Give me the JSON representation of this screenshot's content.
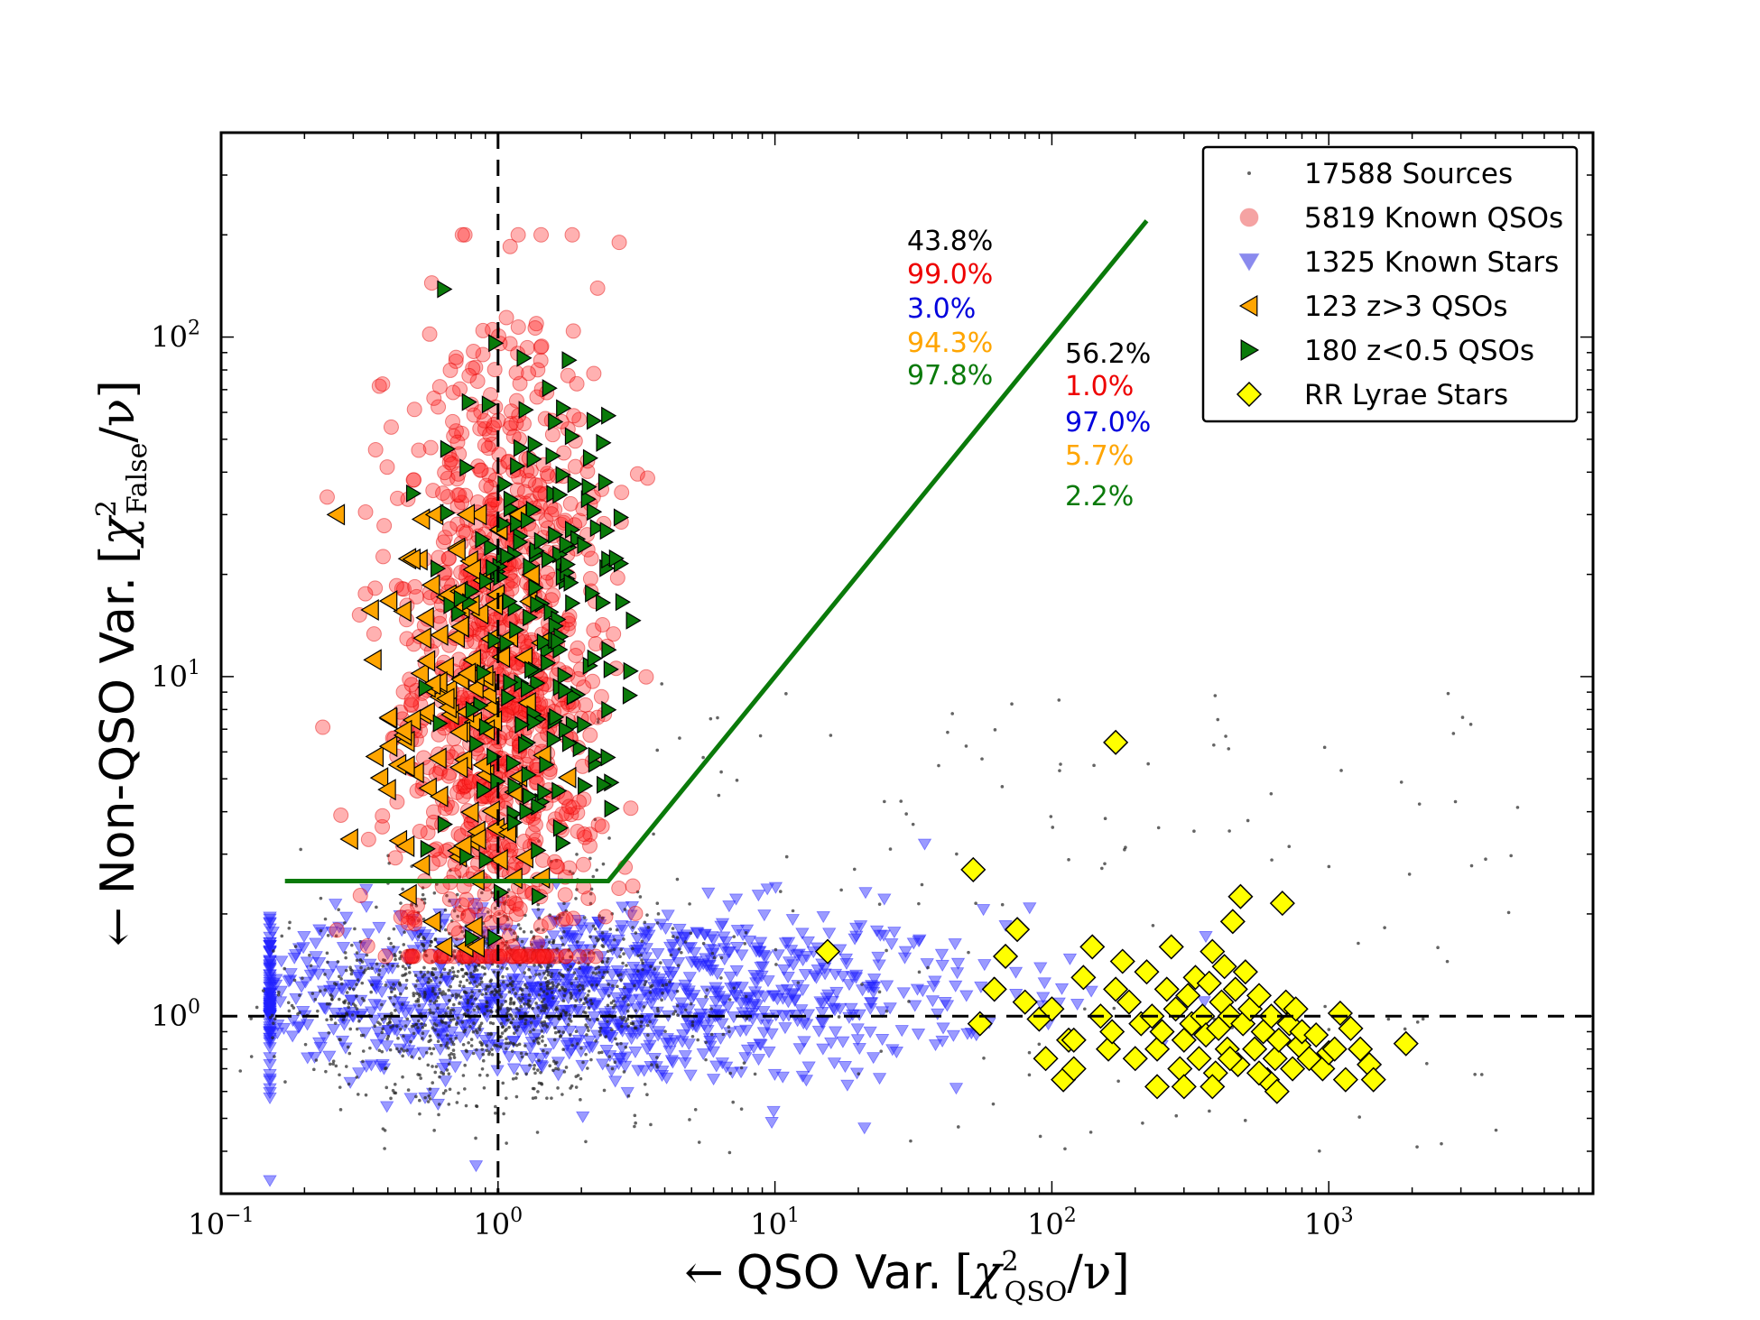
{
  "chart_data": {
    "type": "scatter",
    "title": "",
    "xlabel": {
      "arrow": "←",
      "text": "QSO Var.",
      "symbol": "χ",
      "sup": "2",
      "sub": "QSO",
      "tail": "/ν"
    },
    "ylabel": {
      "arrow": "←",
      "text": "Non-QSO Var.",
      "symbol": "χ",
      "sup": "2",
      "sub": "False",
      "tail": "/ν"
    },
    "xscale": "log",
    "yscale": "log",
    "xlim": [
      0.1,
      9000
    ],
    "ylim": [
      0.3,
      400
    ],
    "x_ticks": [
      {
        "value": 0.1,
        "base": "10",
        "exp": "−1"
      },
      {
        "value": 1,
        "base": "10",
        "exp": "0"
      },
      {
        "value": 10,
        "base": "10",
        "exp": "1"
      },
      {
        "value": 100,
        "base": "10",
        "exp": "2"
      },
      {
        "value": 1000,
        "base": "10",
        "exp": "3"
      }
    ],
    "y_ticks": [
      {
        "value": 1,
        "base": "10",
        "exp": "0"
      },
      {
        "value": 10,
        "base": "10",
        "exp": "1"
      },
      {
        "value": 100,
        "base": "10",
        "exp": "2"
      }
    ],
    "reference_lines": [
      {
        "orientation": "vertical",
        "value": 1,
        "style": "dashed"
      },
      {
        "orientation": "horizontal",
        "value": 1,
        "style": "dashed"
      }
    ],
    "selection_boundary": {
      "color": "#0a7a0a",
      "points": [
        [
          0.17,
          2.5
        ],
        [
          2.5,
          2.5
        ],
        [
          220,
          220
        ]
      ]
    },
    "legend": {
      "placement": "top-right",
      "entries": [
        {
          "label": "17588 Sources",
          "marker": "dot",
          "color": "#444444"
        },
        {
          "label": "5819 Known QSOs",
          "marker": "circle",
          "color": "#f28c8c"
        },
        {
          "label": "1325 Known Stars",
          "marker": "triangle-down",
          "color": "#8a8aee"
        },
        {
          "label": "123 z>3 QSOs",
          "marker": "triangle-left",
          "color": "#ffa500"
        },
        {
          "label": "180 z<0.5 QSOs",
          "marker": "triangle-right",
          "color": "#0a7a0a"
        },
        {
          "label": "RR Lyrae Stars",
          "marker": "diamond",
          "color": "#ffff00"
        }
      ]
    },
    "annotations": [
      {
        "region": "selected",
        "values": [
          {
            "text": "43.8%",
            "color": "#000000"
          },
          {
            "text": "99.0%",
            "color": "#ee0000"
          },
          {
            "text": "3.0%",
            "color": "#0000dd"
          },
          {
            "text": "94.3%",
            "color": "#ffa500"
          },
          {
            "text": "97.8%",
            "color": "#0a7a0a"
          }
        ]
      },
      {
        "region": "rejected",
        "values": [
          {
            "text": "56.2%",
            "color": "#000000"
          },
          {
            "text": "1.0%",
            "color": "#ee0000"
          },
          {
            "text": "97.0%",
            "color": "#0000dd"
          },
          {
            "text": "5.7%",
            "color": "#ffa500"
          },
          {
            "text": "2.2%",
            "color": "#0a7a0a"
          }
        ]
      }
    ],
    "series": [
      {
        "name": "17588 Sources",
        "marker": "dot",
        "color": "#222222",
        "count": 1400,
        "distribution": {
          "x_center": 1.0,
          "x_sigma_dex": 0.35,
          "y_center": 1.15,
          "y_sigma_dex": 0.15,
          "tail": "wide scatter to x~5000"
        }
      },
      {
        "name": "5819 Known QSOs",
        "marker": "circle",
        "color": "#ff0000",
        "count": 1000,
        "distribution": {
          "x_center": 1.0,
          "x_sigma_dex": 0.18,
          "y_center": 10,
          "y_sigma_dex": 0.5,
          "y_range": [
            1.5,
            200
          ]
        }
      },
      {
        "name": "1325 Known Stars",
        "marker": "triangle-down",
        "color": "#0000ff",
        "count": 1100,
        "distribution": {
          "x_center": 2.0,
          "x_sigma_dex": 0.75,
          "y_center": 1.15,
          "y_sigma_dex": 0.13,
          "x_range": [
            0.15,
            5000
          ]
        }
      },
      {
        "name": "123 z>3 QSOs",
        "marker": "triangle-left",
        "color": "#ffa500",
        "count": 123,
        "distribution": {
          "x_center": 0.7,
          "x_sigma_dex": 0.15,
          "y_center": 8,
          "y_sigma_dex": 0.35,
          "y_range": [
            1.6,
            30
          ]
        }
      },
      {
        "name": "180 z<0.5 QSOs",
        "marker": "triangle-right",
        "color": "#008000",
        "count": 180,
        "distribution": {
          "x_center": 1.4,
          "x_sigma_dex": 0.18,
          "y_center": 15,
          "y_sigma_dex": 0.4,
          "y_range": [
            1.7,
            300
          ]
        }
      },
      {
        "name": "RR Lyrae Stars",
        "marker": "diamond",
        "color": "#ffff00",
        "points": [
          [
            15.5,
            1.55
          ],
          [
            52,
            2.7
          ],
          [
            170,
            6.4
          ],
          [
            55,
            0.95
          ],
          [
            62,
            1.2
          ],
          [
            68,
            1.5
          ],
          [
            75,
            1.8
          ],
          [
            80,
            1.1
          ],
          [
            90,
            0.98
          ],
          [
            95,
            0.75
          ],
          [
            100,
            1.05
          ],
          [
            110,
            0.65
          ],
          [
            115,
            0.85
          ],
          [
            120,
            0.7
          ],
          [
            130,
            1.3
          ],
          [
            140,
            1.6
          ],
          [
            150,
            1.0
          ],
          [
            160,
            0.8
          ],
          [
            165,
            0.9
          ],
          [
            170,
            1.2
          ],
          [
            180,
            1.45
          ],
          [
            190,
            1.1
          ],
          [
            200,
            0.75
          ],
          [
            210,
            0.95
          ],
          [
            220,
            1.35
          ],
          [
            230,
            1.0
          ],
          [
            240,
            0.8
          ],
          [
            250,
            0.9
          ],
          [
            260,
            1.2
          ],
          [
            270,
            1.6
          ],
          [
            280,
            1.05
          ],
          [
            290,
            0.7
          ],
          [
            300,
            0.85
          ],
          [
            310,
            1.15
          ],
          [
            320,
            0.95
          ],
          [
            330,
            1.3
          ],
          [
            340,
            0.75
          ],
          [
            350,
            1.0
          ],
          [
            360,
            0.88
          ],
          [
            370,
            1.25
          ],
          [
            380,
            1.55
          ],
          [
            390,
            0.68
          ],
          [
            400,
            0.92
          ],
          [
            410,
            1.1
          ],
          [
            420,
            1.4
          ],
          [
            430,
            0.8
          ],
          [
            440,
            1.0
          ],
          [
            450,
            1.9
          ],
          [
            460,
            1.2
          ],
          [
            470,
            0.72
          ],
          [
            480,
            2.25
          ],
          [
            490,
            0.95
          ],
          [
            500,
            1.35
          ],
          [
            520,
            1.05
          ],
          [
            540,
            0.8
          ],
          [
            560,
            1.15
          ],
          [
            580,
            0.9
          ],
          [
            600,
            0.65
          ],
          [
            620,
            1.0
          ],
          [
            640,
            0.75
          ],
          [
            660,
            0.85
          ],
          [
            680,
            2.15
          ],
          [
            700,
            1.1
          ],
          [
            720,
            0.95
          ],
          [
            740,
            0.7
          ],
          [
            760,
            1.05
          ],
          [
            780,
            0.82
          ],
          [
            800,
            0.9
          ],
          [
            850,
            0.75
          ],
          [
            900,
            0.88
          ],
          [
            950,
            0.7
          ],
          [
            1000,
            0.78
          ],
          [
            1050,
            0.8
          ],
          [
            1100,
            1.02
          ],
          [
            1150,
            0.65
          ],
          [
            1200,
            0.92
          ],
          [
            1300,
            0.8
          ],
          [
            1400,
            0.72
          ],
          [
            1450,
            0.65
          ],
          [
            1900,
            0.83
          ],
          [
            380,
            0.62
          ],
          [
            560,
            0.68
          ],
          [
            240,
            0.62
          ],
          [
            120,
            0.85
          ],
          [
            300,
            0.62
          ],
          [
            440,
            0.75
          ],
          [
            650,
            0.6
          ]
        ]
      }
    ]
  }
}
